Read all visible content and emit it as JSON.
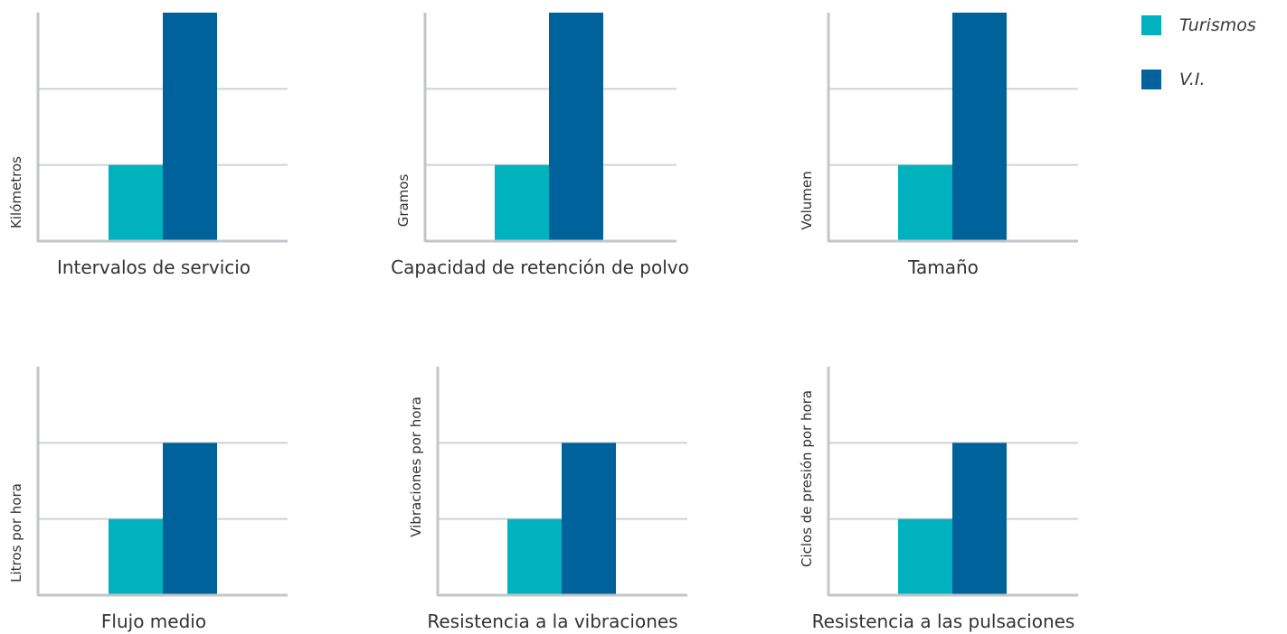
{
  "colors": {
    "turismos": "#00b2bd",
    "vi": "#00629a",
    "grid": "#cfd2d4",
    "axis": "#c3c6c8",
    "text": "#333333"
  },
  "legend": [
    {
      "label": "Turismos",
      "color": "#00b2bd"
    },
    {
      "label": "V.I.",
      "color": "#00629a"
    }
  ],
  "chart_data": [
    {
      "type": "bar",
      "title": "Intervalos de servicio",
      "ylabel": "Kilómetros",
      "ylim": [
        0,
        3
      ],
      "grid": true,
      "series": [
        {
          "name": "Turismos",
          "values": [
            1
          ]
        },
        {
          "name": "V.I.",
          "values": [
            3
          ]
        }
      ]
    },
    {
      "type": "bar",
      "title": "Capacidad de retención de polvo",
      "ylabel": "Gramos",
      "ylim": [
        0,
        3
      ],
      "grid": true,
      "series": [
        {
          "name": "Turismos",
          "values": [
            1
          ]
        },
        {
          "name": "V.I.",
          "values": [
            3
          ]
        }
      ]
    },
    {
      "type": "bar",
      "title": "Tamaño",
      "ylabel": "Volumen",
      "ylim": [
        0,
        3
      ],
      "grid": true,
      "series": [
        {
          "name": "Turismos",
          "values": [
            1
          ]
        },
        {
          "name": "V.I.",
          "values": [
            3
          ]
        }
      ]
    },
    {
      "type": "bar",
      "title": "Flujo medio",
      "ylabel": "Litros por hora",
      "ylim": [
        0,
        3
      ],
      "grid": true,
      "series": [
        {
          "name": "Turismos",
          "values": [
            1
          ]
        },
        {
          "name": "V.I.",
          "values": [
            2
          ]
        }
      ]
    },
    {
      "type": "bar",
      "title": "Resistencia a la vibraciones",
      "ylabel": "Vibraciones por hora",
      "ylim": [
        0,
        3
      ],
      "grid": true,
      "series": [
        {
          "name": "Turismos",
          "values": [
            1
          ]
        },
        {
          "name": "V.I.",
          "values": [
            2
          ]
        }
      ]
    },
    {
      "type": "bar",
      "title": "Resistencia a las pulsaciones",
      "ylabel": "Ciclos de presión por hora",
      "ylim": [
        0,
        3
      ],
      "grid": true,
      "series": [
        {
          "name": "Turismos",
          "values": [
            1
          ]
        },
        {
          "name": "V.I.",
          "values": [
            2
          ]
        }
      ]
    }
  ]
}
